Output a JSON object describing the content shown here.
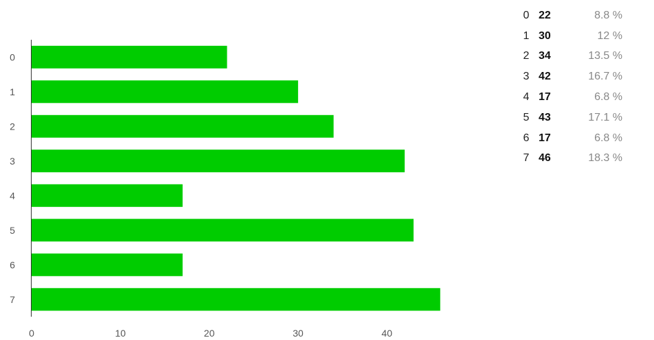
{
  "chart_data": {
    "type": "bar",
    "orientation": "horizontal",
    "categories": [
      "0",
      "1",
      "2",
      "3",
      "4",
      "5",
      "6",
      "7"
    ],
    "values": [
      22,
      30,
      34,
      42,
      17,
      43,
      17,
      46
    ],
    "percentages": [
      "8.8 %",
      "12 %",
      "13.5 %",
      "16.7 %",
      "6.8 %",
      "17.1 %",
      "6.8 %",
      "18.3 %"
    ],
    "xticks": [
      "0",
      "10",
      "20",
      "30",
      "40"
    ],
    "xlim": [
      0,
      50
    ],
    "grid": false,
    "bar_color": "#00cc00",
    "axis_color": "#333333",
    "title": "",
    "xlabel": "",
    "ylabel": ""
  }
}
